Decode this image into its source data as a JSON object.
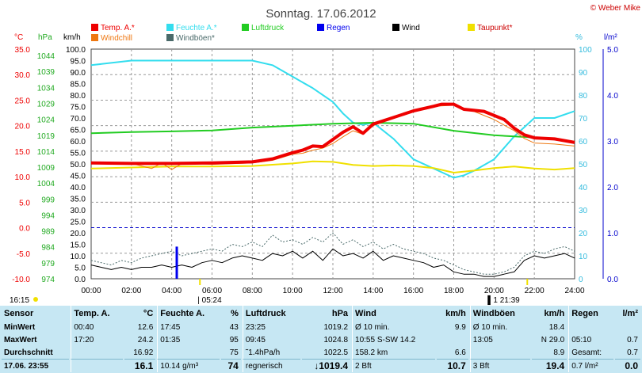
{
  "title": "Sonntag. 17.06.2012",
  "copyright": "© Weber Mike",
  "sunrise": "05:24",
  "sunset": "21:39",
  "corner_time": "16:15",
  "axis_units": {
    "temp": "°C",
    "pressure": "hPa",
    "wind": "km/h",
    "humidity": "%",
    "rain": "l/m²"
  },
  "legend": [
    {
      "label": "Temp. A.*",
      "color": "#ee0000"
    },
    {
      "label": "Feuchte A.*",
      "color": "#33ddee"
    },
    {
      "label": "Luftdruck",
      "color": "#22cc22"
    },
    {
      "label": "Regen",
      "color": "#0000ee"
    },
    {
      "label": "Wind",
      "color": "#000000"
    },
    {
      "label": "Taupunkt*",
      "color": "#f0e000"
    },
    {
      "label": "Windchill",
      "color": "#ee7711"
    },
    {
      "label": "Windböen*",
      "color": "#4a6a6a"
    }
  ],
  "chart_data": {
    "type": "line",
    "title": "Sonntag. 17.06.2012",
    "x_ticks": [
      "00:00",
      "02:00",
      "04:00",
      "06:00",
      "08:00",
      "10:00",
      "12:00",
      "14:00",
      "16:00",
      "18:00",
      "20:00",
      "22:00",
      "24:00"
    ],
    "x_range": [
      0,
      24
    ],
    "axes": {
      "temp_c": {
        "range": [
          -10,
          35
        ],
        "ticks": [
          "35.0",
          "30.0",
          "25.0",
          "20.0",
          "15.0",
          "10.0",
          "5.0",
          "0.0",
          "-5.0",
          "-10.0"
        ]
      },
      "pressure_hpa": {
        "range": [
          974,
          1046
        ],
        "ticks": [
          "1044",
          "1039",
          "1034",
          "1029",
          "1024",
          "1019",
          "1014",
          "1009",
          "1004",
          "999",
          "994",
          "989",
          "984",
          "979",
          "974"
        ]
      },
      "wind_kmh": {
        "range": [
          0,
          100
        ],
        "ticks": [
          "100.0",
          "95.0",
          "90.0",
          "85.0",
          "80.0",
          "75.0",
          "70.0",
          "65.0",
          "60.0",
          "55.0",
          "50.0",
          "45.0",
          "40.0",
          "35.0",
          "30.0",
          "25.0",
          "20.0",
          "15.0",
          "10.0",
          "5.0",
          "0.0"
        ]
      },
      "humidity_pct": {
        "range": [
          0,
          100
        ],
        "ticks": [
          "100",
          "90",
          "80",
          "70",
          "60",
          "50",
          "40",
          "30",
          "20",
          "10",
          "0"
        ]
      },
      "rain_lm2": {
        "range": [
          0,
          5
        ],
        "ticks": [
          "5.0",
          "4.0",
          "3.0",
          "2.0",
          "1.0",
          "0.0"
        ]
      }
    },
    "series": [
      {
        "name": "Temp. A.*",
        "axis": "temp",
        "color": "#ee0000",
        "width": 4,
        "x": [
          0,
          2,
          4,
          6,
          8,
          9,
          10,
          10.5,
          11,
          11.5,
          12,
          12.5,
          13,
          13.5,
          14,
          15,
          16,
          17,
          17.4,
          18,
          18.5,
          19.5,
          20.5,
          21,
          21.5,
          22,
          23,
          24
        ],
        "y": [
          12.7,
          12.6,
          12.6,
          12.7,
          12.9,
          13.5,
          14.7,
          15.2,
          16,
          15.9,
          17.3,
          18.7,
          19.8,
          18.5,
          20.3,
          21.6,
          22.9,
          23.8,
          24.2,
          24.2,
          23.2,
          22.8,
          21.2,
          19.5,
          18.2,
          17.6,
          17.4,
          16.7
        ]
      },
      {
        "name": "Windchill",
        "axis": "temp",
        "color": "#ee7711",
        "width": 1,
        "x": [
          0,
          2,
          3,
          3.5,
          4,
          4.5,
          5,
          6,
          8,
          9,
          10,
          10.5,
          11,
          11.5,
          12,
          12.5,
          13,
          13.5,
          14,
          15,
          16,
          17,
          18,
          19,
          20,
          21,
          21.5,
          22,
          23,
          24
        ],
        "y": [
          12.6,
          12.6,
          11.6,
          12.7,
          11.4,
          12.6,
          12.6,
          12.4,
          12.7,
          13.2,
          14.4,
          14.6,
          15.2,
          15.6,
          16.5,
          17.8,
          19,
          18.3,
          20,
          21.4,
          22.8,
          23.8,
          24,
          22.8,
          21.2,
          19,
          17.5,
          16.6,
          16.4,
          16
        ]
      },
      {
        "name": "Taupunkt*",
        "axis": "temp",
        "color": "#f0e000",
        "width": 2,
        "x": [
          0,
          2,
          4,
          6,
          8,
          10,
          11,
          12,
          13,
          14,
          15,
          16,
          17,
          18,
          19,
          20,
          21,
          22,
          23,
          24
        ],
        "y": [
          11.6,
          11.8,
          12,
          12,
          12.1,
          12.6,
          13,
          12.9,
          12.3,
          12.1,
          12.2,
          12.1,
          11.7,
          10.8,
          11.2,
          11.7,
          12,
          11.6,
          11.4,
          11.7
        ]
      },
      {
        "name": "Feuchte A.*",
        "axis": "humidity",
        "color": "#33ddee",
        "width": 2,
        "x": [
          0,
          2,
          4,
          6,
          8,
          9,
          10,
          11,
          12,
          12.5,
          13,
          13.5,
          14,
          15,
          16,
          17,
          17.5,
          18,
          18.5,
          19,
          20,
          21,
          22,
          23,
          24
        ],
        "y": [
          93,
          95,
          95,
          95,
          95,
          93,
          88,
          83,
          77,
          72,
          68,
          67,
          68,
          61,
          52,
          48,
          46,
          44,
          45,
          47,
          52,
          62,
          70,
          70,
          73
        ]
      },
      {
        "name": "Luftdruck",
        "axis": "pressure",
        "color": "#22cc22",
        "width": 2,
        "x": [
          0,
          2,
          4,
          6,
          8,
          10,
          12,
          14,
          16,
          18,
          20,
          22,
          24
        ],
        "y": [
          1019.6,
          1020,
          1020.2,
          1020.5,
          1021.4,
          1022,
          1022.6,
          1022.9,
          1022.6,
          1020.4,
          1019,
          1018.3,
          1017
        ]
      },
      {
        "name": "Wind",
        "axis": "wind",
        "color": "#000000",
        "width": 1,
        "x": [
          0,
          0.5,
          1,
          1.5,
          2,
          2.5,
          3,
          3.5,
          4,
          4.5,
          5,
          5.5,
          6,
          6.5,
          7,
          7.5,
          8,
          8.5,
          9,
          9.5,
          10,
          10.5,
          11,
          11.5,
          12,
          12.5,
          13,
          13.5,
          14,
          14.5,
          15,
          15.5,
          16,
          16.5,
          17,
          17.5,
          18,
          18.5,
          19,
          19.5,
          20,
          20.5,
          21,
          21.5,
          22,
          22.5,
          23,
          23.5,
          24
        ],
        "y": [
          6,
          5,
          4,
          5,
          4,
          5,
          5,
          6,
          5,
          6,
          5,
          7,
          8,
          7,
          9,
          10,
          9,
          8,
          11,
          10,
          12,
          9,
          12,
          8,
          13,
          10,
          11,
          9,
          12,
          8,
          10,
          9,
          8,
          7,
          5,
          6,
          3,
          2,
          2,
          1,
          1,
          2,
          3,
          8,
          10,
          9,
          10,
          11,
          9
        ]
      },
      {
        "name": "Windböen*",
        "axis": "wind",
        "color": "#4a6a6a",
        "width": 1,
        "dash": true,
        "x": [
          0,
          0.5,
          1,
          1.5,
          2,
          2.5,
          3,
          3.5,
          4,
          4.5,
          5,
          5.5,
          6,
          6.5,
          7,
          7.5,
          8,
          8.5,
          9,
          9.5,
          10,
          10.5,
          11,
          11.5,
          12,
          12.5,
          13,
          13.5,
          14,
          14.5,
          15,
          15.5,
          16,
          16.5,
          17,
          17.5,
          18,
          18.5,
          19,
          19.5,
          20,
          20.5,
          21,
          21.5,
          22,
          22.5,
          23,
          23.5,
          24
        ],
        "y": [
          8,
          7,
          6,
          8,
          7,
          9,
          10,
          11,
          12,
          10,
          11,
          12,
          13,
          12,
          15,
          14,
          16,
          14,
          19,
          16,
          17,
          15,
          18,
          16,
          20,
          15,
          17,
          14,
          16,
          13,
          15,
          13,
          12,
          11,
          9,
          8,
          6,
          4,
          3,
          2,
          2,
          3,
          5,
          10,
          12,
          11,
          13,
          14,
          12
        ]
      },
      {
        "name": "Regen",
        "axis": "rain",
        "color": "#0000ee",
        "width": 3,
        "type": "bar",
        "x": [
          4.25
        ],
        "y": [
          0.7
        ]
      }
    ],
    "reference_line": {
      "axis": "temp",
      "value": 0,
      "color": "#0000cc",
      "style": "dashed"
    },
    "grid": true
  },
  "table": {
    "headers": [
      "Sensor",
      "Temp. A.",
      "°C",
      "Feuchte A.",
      "%",
      "Luftdruck",
      "hPa",
      "Wind",
      "km/h",
      "Windböen",
      "km/h",
      "Regen",
      "l/m²"
    ],
    "rows": [
      [
        "MinWert",
        "00:40",
        "12.6",
        "17:45",
        "43",
        "23:25",
        "1019.2",
        "Ø 10 min.",
        "9.9",
        "Ø 10 min.",
        "18.4",
        "",
        ""
      ],
      [
        "MaxWert",
        "17:20",
        "24.2",
        "01:35",
        "95",
        "09:45",
        "1024.8",
        "10:55  S-SW 14.2",
        "",
        "13:05",
        "N 29.0",
        "05:10",
        "0.7"
      ],
      [
        "Durchschnitt",
        "",
        "16.92",
        "",
        "75",
        "˜1.4hPa/h",
        "1022.5",
        "158.2 km",
        "6.6",
        "",
        "8.9",
        "Gesamt:",
        "0.7"
      ],
      [
        "17.06. 23:55",
        "",
        "16.1",
        "10.14 g/m³",
        "74",
        "regnerisch",
        "↓1019.4",
        "2 Bft",
        "10.7",
        "3 Bft",
        "19.4",
        "0.7 l/m²",
        "0.0"
      ]
    ]
  }
}
